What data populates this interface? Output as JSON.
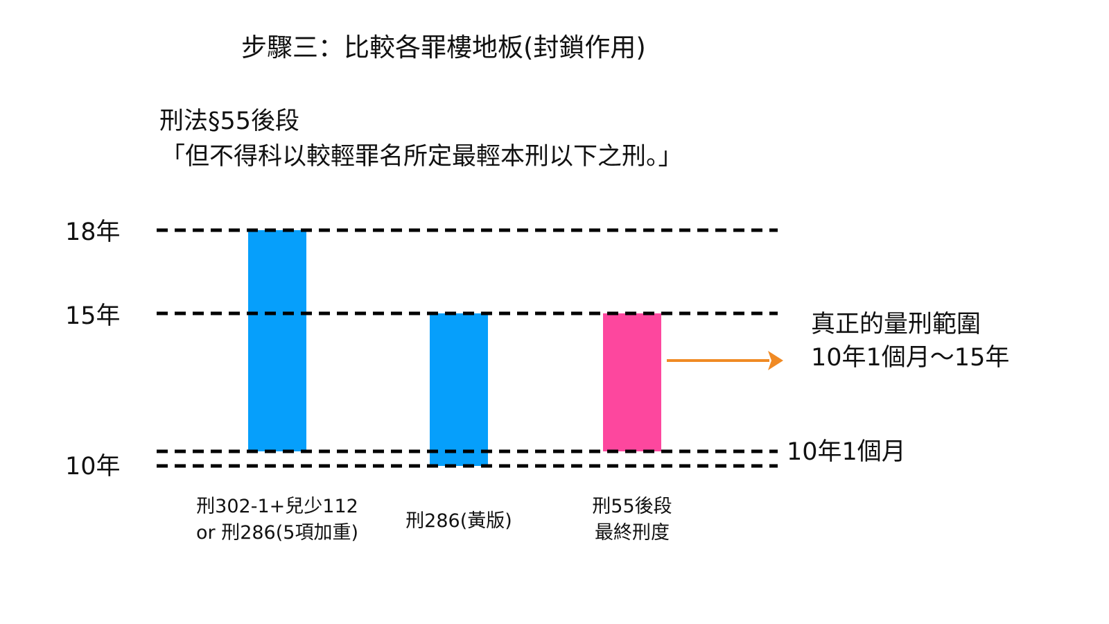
{
  "title": "步驟三：比較各罪樓地板(封鎖作用)",
  "article": "刑法§55後段",
  "quote": "「但不得科以較輕罪名所定最輕本刑以下之刑。」",
  "result": {
    "title": "真正的量刑範圍",
    "range": "10年1個月～15年"
  },
  "colors": {
    "blue": "#069ffb",
    "pink": "#fd479e",
    "arrow": "#f08a24",
    "dash": "#000000"
  },
  "chart_data": {
    "type": "bar",
    "style": "floating range bars",
    "unit": "months",
    "y_ticks": [
      {
        "label": "18年",
        "value": 216
      },
      {
        "label": "15年",
        "value": 180
      },
      {
        "label": "10年",
        "value": 120
      }
    ],
    "reference_lines": [
      {
        "value": 216,
        "label": ""
      },
      {
        "value": 180,
        "label": ""
      },
      {
        "value": 121,
        "label": "10年1個月"
      },
      {
        "value": 120,
        "label": ""
      }
    ],
    "grid": false,
    "legend": "none",
    "bars": [
      {
        "category": "刑302-1+兒少112\nor 刑286(5項加重)",
        "low": 121,
        "high": 216,
        "color": "blue"
      },
      {
        "category": "刑286(黃版)",
        "low": 120,
        "high": 180,
        "color": "blue"
      },
      {
        "category": "刑55後段\n最終刑度",
        "low": 121,
        "high": 180,
        "color": "pink"
      }
    ],
    "annotation": {
      "from_bar": 2,
      "text_ref": "result"
    }
  }
}
